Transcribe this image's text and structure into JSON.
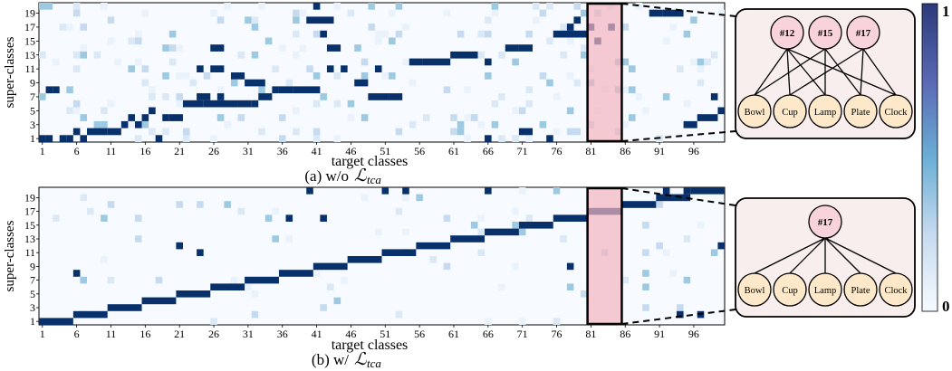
{
  "figure": {
    "colorbar": {
      "max_label": "1",
      "min_label": "0",
      "low_color": "#f7fbff",
      "high_color": "#08306b"
    }
  },
  "chart_data": [
    {
      "type": "heatmap",
      "caption": "(a) w/o",
      "caption_math": "ℒ",
      "caption_sub": "tca",
      "xlabel": "target classes",
      "ylabel": "super-classes",
      "x_ticks": [
        "1",
        "6",
        "11",
        "16",
        "21",
        "26",
        "31",
        "36",
        "41",
        "46",
        "51",
        "56",
        "61",
        "66",
        "71",
        "76",
        "81",
        "86",
        "91",
        "96"
      ],
      "y_ticks": [
        "1",
        "3",
        "5",
        "7",
        "9",
        "11",
        "13",
        "15",
        "17",
        "19"
      ],
      "x_range": [
        1,
        100
      ],
      "y_range": [
        1,
        20
      ],
      "highlight_classes": [
        81,
        85
      ],
      "diagonal": [
        {
          "x": [
            1,
            1
          ],
          "y": 1
        },
        {
          "x": [
            2,
            2
          ],
          "y": 1
        },
        {
          "x": [
            4,
            4
          ],
          "y": 1
        },
        {
          "x": [
            5,
            5
          ],
          "y": 1
        },
        {
          "x": [
            2,
            2
          ],
          "y": 8
        },
        {
          "x": [
            3,
            3
          ],
          "y": 8
        },
        {
          "x": [
            6,
            6
          ],
          "y": 2
        },
        {
          "x": [
            7,
            7
          ],
          "y": 1
        },
        {
          "x": [
            8,
            10
          ],
          "y": 2
        },
        {
          "x": [
            11,
            12
          ],
          "y": 2
        },
        {
          "x": [
            13,
            13
          ],
          "y": 3
        },
        {
          "x": [
            14,
            14
          ],
          "y": 4
        },
        {
          "x": [
            15,
            15
          ],
          "y": 3
        },
        {
          "x": [
            16,
            16
          ],
          "y": 4
        },
        {
          "x": [
            17,
            17
          ],
          "y": 5
        },
        {
          "x": [
            18,
            18
          ],
          "y": 1
        },
        {
          "x": [
            19,
            19
          ],
          "y": 4
        },
        {
          "x": [
            20,
            21
          ],
          "y": 4
        },
        {
          "x": [
            22,
            24
          ],
          "y": 6
        },
        {
          "x": [
            25,
            29
          ],
          "y": 6
        },
        {
          "x": [
            30,
            31
          ],
          "y": 6
        },
        {
          "x": [
            32,
            32
          ],
          "y": 6
        },
        {
          "x": [
            33,
            34
          ],
          "y": 7
        },
        {
          "x": [
            35,
            35
          ],
          "y": 8
        },
        {
          "x": [
            36,
            37
          ],
          "y": 8
        },
        {
          "x": [
            38,
            41
          ],
          "y": 8
        },
        {
          "x": [
            40,
            43
          ],
          "y": 18
        },
        {
          "x": [
            41,
            41
          ],
          "y": 20
        },
        {
          "x": [
            42,
            42
          ],
          "y": 16
        },
        {
          "x": [
            43,
            43
          ],
          "y": 11
        },
        {
          "x": [
            45,
            45
          ],
          "y": 11
        },
        {
          "x": [
            50,
            50
          ],
          "y": 11
        },
        {
          "x": [
            55,
            56
          ],
          "y": 12
        },
        {
          "x": [
            57,
            60
          ],
          "y": 12
        },
        {
          "x": [
            61,
            64
          ],
          "y": 13
        },
        {
          "x": [
            66,
            66
          ],
          "y": 1
        },
        {
          "x": [
            66,
            66
          ],
          "y": 12
        },
        {
          "x": [
            69,
            70
          ],
          "y": 14
        },
        {
          "x": [
            71,
            72
          ],
          "y": 14
        },
        {
          "x": [
            71,
            72
          ],
          "y": 2
        },
        {
          "x": [
            75,
            75
          ],
          "y": 1
        },
        {
          "x": [
            76,
            80
          ],
          "y": 16
        },
        {
          "x": [
            78,
            78
          ],
          "y": 17
        },
        {
          "x": [
            79,
            79
          ],
          "y": 18
        },
        {
          "x": [
            81,
            81
          ],
          "y": 17
        },
        {
          "x": [
            82,
            82
          ],
          "y": 15
        },
        {
          "x": [
            84,
            84
          ],
          "y": 17
        },
        {
          "x": [
            90,
            91
          ],
          "y": 19
        },
        {
          "x": [
            92,
            94
          ],
          "y": 19
        },
        {
          "x": [
            95,
            96
          ],
          "y": 3
        },
        {
          "x": [
            97,
            99
          ],
          "y": 4
        },
        {
          "x": [
            100,
            100
          ],
          "y": 5
        },
        {
          "x": [
            99,
            99
          ],
          "y": 7
        },
        {
          "x": [
            29,
            30
          ],
          "y": 10
        },
        {
          "x": [
            31,
            33
          ],
          "y": 9
        },
        {
          "x": [
            24,
            24
          ],
          "y": 11
        },
        {
          "x": [
            26,
            27
          ],
          "y": 11
        },
        {
          "x": [
            26,
            27
          ],
          "y": 14
        },
        {
          "x": [
            27,
            27
          ],
          "y": 7
        },
        {
          "x": [
            24,
            25
          ],
          "y": 7
        },
        {
          "x": [
            43,
            44
          ],
          "y": 14
        },
        {
          "x": [
            52,
            53
          ],
          "y": 7
        },
        {
          "x": [
            49,
            51
          ],
          "y": 7
        },
        {
          "x": [
            47,
            48
          ],
          "y": 9
        }
      ],
      "graph": {
        "super_nodes": [
          "#12",
          "#15",
          "#17"
        ],
        "class_nodes": [
          "Bowl",
          "Cup",
          "Lamp",
          "Plate",
          "Clock"
        ],
        "edges": [
          [
            0,
            0
          ],
          [
            0,
            1
          ],
          [
            0,
            2
          ],
          [
            1,
            0
          ],
          [
            1,
            2
          ],
          [
            1,
            3
          ],
          [
            2,
            1
          ],
          [
            2,
            3
          ],
          [
            2,
            4
          ],
          [
            0,
            4
          ]
        ]
      }
    },
    {
      "type": "heatmap",
      "caption": "(b) w/",
      "caption_math": "ℒ",
      "caption_sub": "tca",
      "xlabel": "target classes",
      "ylabel": "super-classes",
      "x_ticks": [
        "1",
        "6",
        "11",
        "16",
        "21",
        "26",
        "31",
        "36",
        "41",
        "46",
        "51",
        "56",
        "61",
        "66",
        "71",
        "76",
        "81",
        "86",
        "91",
        "96"
      ],
      "y_ticks": [
        "1",
        "3",
        "5",
        "7",
        "9",
        "11",
        "13",
        "15",
        "17",
        "19"
      ],
      "x_range": [
        1,
        100
      ],
      "y_range": [
        1,
        20
      ],
      "highlight_classes": [
        81,
        85
      ],
      "diagonal": [
        {
          "x": [
            1,
            5
          ],
          "y": 1
        },
        {
          "x": [
            6,
            10
          ],
          "y": 2
        },
        {
          "x": [
            11,
            15
          ],
          "y": 3
        },
        {
          "x": [
            16,
            20
          ],
          "y": 4
        },
        {
          "x": [
            21,
            25
          ],
          "y": 5
        },
        {
          "x": [
            26,
            30
          ],
          "y": 6
        },
        {
          "x": [
            31,
            35
          ],
          "y": 7
        },
        {
          "x": [
            36,
            40
          ],
          "y": 8
        },
        {
          "x": [
            41,
            45
          ],
          "y": 9
        },
        {
          "x": [
            46,
            50
          ],
          "y": 10
        },
        {
          "x": [
            51,
            55
          ],
          "y": 11
        },
        {
          "x": [
            56,
            60
          ],
          "y": 12
        },
        {
          "x": [
            61,
            65
          ],
          "y": 13
        },
        {
          "x": [
            66,
            70
          ],
          "y": 14
        },
        {
          "x": [
            71,
            75
          ],
          "y": 15
        },
        {
          "x": [
            76,
            80
          ],
          "y": 16
        },
        {
          "x": [
            81,
            85
          ],
          "y": 17
        },
        {
          "x": [
            86,
            90
          ],
          "y": 18
        },
        {
          "x": [
            91,
            95
          ],
          "y": 19
        },
        {
          "x": [
            96,
            100
          ],
          "y": 20
        },
        {
          "x": [
            6,
            6
          ],
          "y": 8
        },
        {
          "x": [
            40,
            40
          ],
          "y": 20
        },
        {
          "x": [
            37,
            37
          ],
          "y": 16
        },
        {
          "x": [
            42,
            42
          ],
          "y": 16
        },
        {
          "x": [
            24,
            24
          ],
          "y": 11
        },
        {
          "x": [
            21,
            21
          ],
          "y": 12
        },
        {
          "x": [
            51,
            51
          ],
          "y": 20
        },
        {
          "x": [
            54,
            54
          ],
          "y": 20
        },
        {
          "x": [
            66,
            66
          ],
          "y": 21
        },
        {
          "x": [
            78,
            78
          ],
          "y": 9
        },
        {
          "x": [
            94,
            94
          ],
          "y": 2
        },
        {
          "x": [
            97,
            97
          ],
          "y": 2
        },
        {
          "x": [
            100,
            100
          ],
          "y": 12
        },
        {
          "x": [
            92,
            92
          ],
          "y": 21
        },
        {
          "x": [
            95,
            95
          ],
          "y": 21
        }
      ],
      "graph": {
        "super_nodes": [
          "#17"
        ],
        "class_nodes": [
          "Bowl",
          "Cup",
          "Lamp",
          "Plate",
          "Clock"
        ],
        "edges": [
          [
            0,
            0
          ],
          [
            0,
            1
          ],
          [
            0,
            2
          ],
          [
            0,
            3
          ],
          [
            0,
            4
          ]
        ]
      }
    }
  ]
}
